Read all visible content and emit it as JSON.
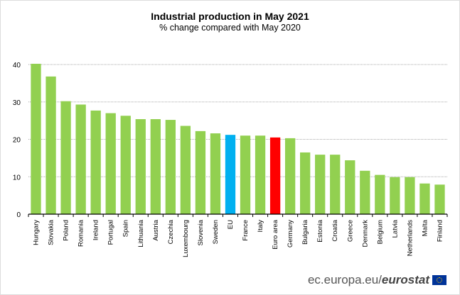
{
  "chart_data": {
    "type": "bar",
    "title": "Industrial production in May 2021",
    "subtitle": "% change compared with May 2020",
    "xlabel": "",
    "ylabel": "",
    "ylim": [
      0,
      40
    ],
    "yticks": [
      0,
      10,
      20,
      30,
      40
    ],
    "grid": true,
    "categories": [
      "Hungary",
      "Slovakia",
      "Poland",
      "Romania",
      "Ireland",
      "Portugal",
      "Spain",
      "Lithuania",
      "Austria",
      "Czechia",
      "Luxembourg",
      "Slovenia",
      "Sweden",
      "EU",
      "France",
      "Italy",
      "Euro area",
      "Germany",
      "Bulgaria",
      "Estonia",
      "Croatia",
      "Greece",
      "Denmark",
      "Belgium",
      "Latvia",
      "Netherlands",
      "Malta",
      "Finland"
    ],
    "values": [
      40.2,
      36.8,
      30.2,
      29.3,
      27.7,
      27.0,
      26.3,
      25.4,
      25.4,
      25.2,
      23.6,
      22.2,
      21.6,
      21.2,
      21.0,
      21.0,
      20.5,
      20.3,
      16.5,
      15.9,
      15.9,
      14.4,
      11.6,
      10.5,
      9.9,
      9.9,
      8.2,
      7.9
    ],
    "colors": {
      "default": "#92d050",
      "EU": "#00b0f0",
      "Euro area": "#ff0000"
    }
  },
  "footer": {
    "source_prefix": "ec.europa.eu/",
    "source_brand": "eurostat"
  },
  "logo": "eu-flag-icon"
}
